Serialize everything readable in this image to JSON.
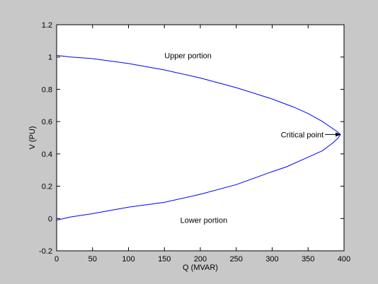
{
  "chart_data": {
    "type": "line",
    "title": "",
    "xlabel": "Q (MVAR)",
    "ylabel": "V (PU)",
    "xlim": [
      0,
      400
    ],
    "ylim": [
      -0.2,
      1.2
    ],
    "xticks": [
      0,
      50,
      100,
      150,
      200,
      250,
      300,
      350,
      400
    ],
    "yticks": [
      -0.2,
      0,
      0.2,
      0.4,
      0.6,
      0.8,
      1,
      1.2
    ],
    "xtick_labels": [
      "0",
      "50",
      "100",
      "150",
      "200",
      "250",
      "300",
      "350",
      "400"
    ],
    "ytick_labels": [
      "-0.2",
      "0",
      "0.2",
      "0.4",
      "0.6",
      "0.8",
      "1",
      "1.2"
    ],
    "grid": false,
    "series": [
      {
        "color": "#0000ff",
        "x": [
          0,
          20,
          50,
          100,
          150,
          200,
          250,
          300,
          330,
          350,
          370,
          380,
          390,
          395,
          392,
          385,
          370,
          350,
          320,
          300,
          250,
          200,
          150,
          100,
          50,
          20,
          0
        ],
        "y": [
          1.01,
          1.0,
          0.99,
          0.96,
          0.92,
          0.87,
          0.81,
          0.74,
          0.69,
          0.65,
          0.6,
          0.57,
          0.54,
          0.52,
          0.5,
          0.47,
          0.42,
          0.38,
          0.32,
          0.29,
          0.21,
          0.15,
          0.1,
          0.07,
          0.03,
          0.01,
          -0.01
        ]
      }
    ],
    "annotations": [
      {
        "id": "upper",
        "text": "Upper portion",
        "x": 150,
        "y": 1.01
      },
      {
        "id": "lower",
        "text": "Lower portion",
        "x": 172,
        "y": -0.01
      },
      {
        "id": "critical",
        "text": "Critical point",
        "x": 312,
        "y": 0.52,
        "arrow_to": [
          395,
          0.52
        ]
      }
    ]
  }
}
